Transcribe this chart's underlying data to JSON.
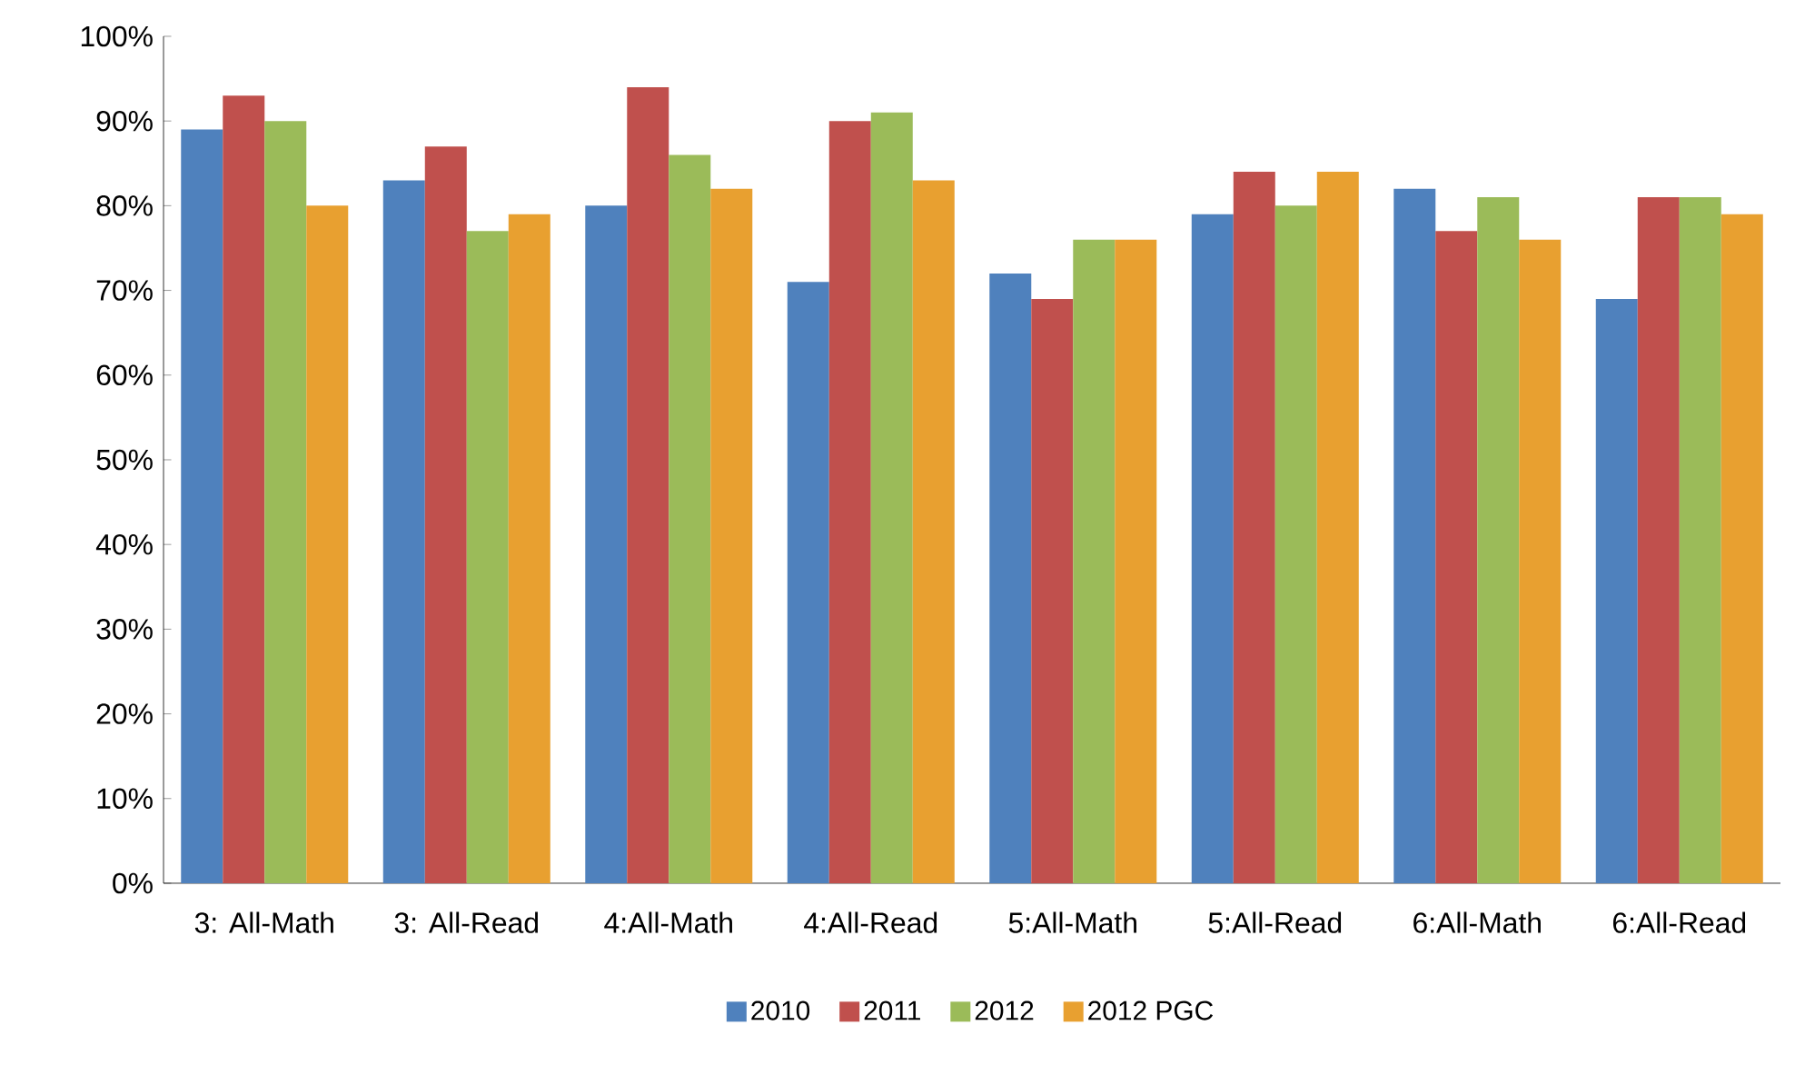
{
  "chart_data": {
    "type": "bar",
    "categories": [
      "3: All-Math",
      "3: All-Read",
      "4:All-Math",
      "4:All-Read",
      "5:All-Math",
      "5:All-Read",
      "6:All-Math",
      "6:All-Read"
    ],
    "series": [
      {
        "name": "2010",
        "color": "#4f81bd",
        "values": [
          89,
          83,
          80,
          71,
          72,
          79,
          82,
          69
        ]
      },
      {
        "name": "2011",
        "color": "#c0504d",
        "values": [
          93,
          87,
          94,
          90,
          69,
          84,
          77,
          81
        ]
      },
      {
        "name": "2012",
        "color": "#9bbb59",
        "values": [
          90,
          77,
          86,
          91,
          76,
          80,
          81,
          81
        ]
      },
      {
        "name": "2012 PGC",
        "color": "#e8a030",
        "values": [
          80,
          79,
          82,
          83,
          76,
          84,
          76,
          79
        ]
      }
    ],
    "ylim": [
      0,
      100
    ],
    "yticks": [
      {
        "value": 0,
        "label": "0%"
      },
      {
        "value": 10,
        "label": "10%"
      },
      {
        "value": 20,
        "label": "20%"
      },
      {
        "value": 30,
        "label": "30%"
      },
      {
        "value": 40,
        "label": "40%"
      },
      {
        "value": 50,
        "label": "50%"
      },
      {
        "value": 60,
        "label": "60%"
      },
      {
        "value": 70,
        "label": "70%"
      },
      {
        "value": 80,
        "label": "80%"
      },
      {
        "value": 90,
        "label": "90%"
      },
      {
        "value": 100,
        "label": "100%"
      }
    ],
    "grid": false,
    "legend": "bottom"
  }
}
